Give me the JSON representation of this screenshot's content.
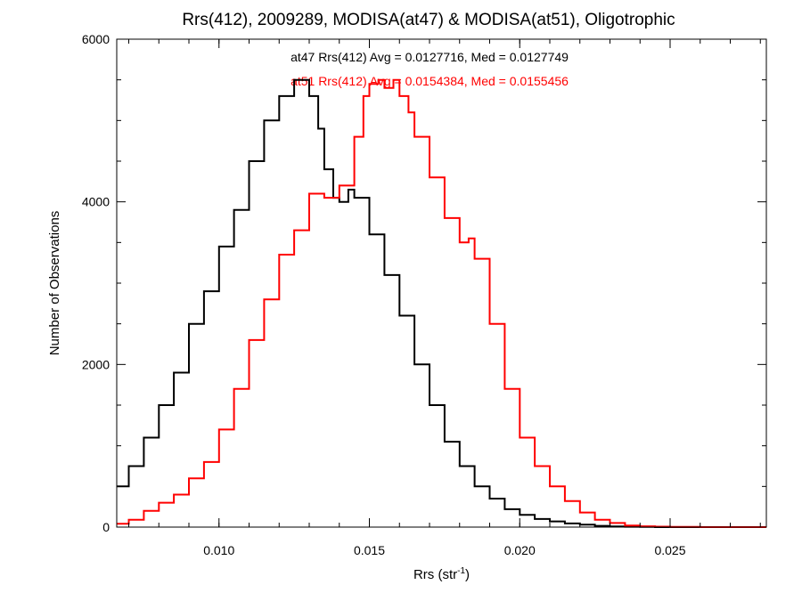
{
  "chart_data": {
    "type": "histogram",
    "title": "Rrs(412), 2009289, MODISA(at47) & MODISA(at51), Oligotrophic",
    "xlabel": "Rrs (str",
    "xlabel_sup": "-1",
    "xlabel_close": ")",
    "ylabel": "Number of Observations",
    "xlim": [
      0.0066,
      0.0282
    ],
    "ylim": [
      0,
      6000
    ],
    "x_ticks": [
      0.01,
      0.015,
      0.02,
      0.025
    ],
    "x_tick_labels": [
      "0.010",
      "0.015",
      "0.020",
      "0.025"
    ],
    "y_ticks": [
      0,
      2000,
      4000,
      6000
    ],
    "y_tick_labels": [
      "0",
      "2000",
      "4000",
      "6000"
    ],
    "grid": false,
    "annotations": [
      {
        "text": "at47 Rrs(412) Avg = 0.0127716, Med = 0.0127749",
        "color": "#000000"
      },
      {
        "text": "at51 Rrs(412) Avg = 0.0154384, Med = 0.0155456",
        "color": "#ff0000"
      }
    ],
    "series": [
      {
        "color": "#000000",
        "x": [
          0.0066,
          0.007,
          0.0075,
          0.008,
          0.0085,
          0.009,
          0.0095,
          0.01,
          0.0105,
          0.011,
          0.0115,
          0.012,
          0.0125,
          0.0128,
          0.013,
          0.0133,
          0.0135,
          0.0138,
          0.014,
          0.0143,
          0.0145,
          0.015,
          0.0155,
          0.016,
          0.0165,
          0.017,
          0.0175,
          0.018,
          0.0185,
          0.019,
          0.0195,
          0.02,
          0.0205,
          0.021,
          0.0215,
          0.022,
          0.0225,
          0.023,
          0.0235,
          0.024,
          0.0245,
          0.025,
          0.026,
          0.027,
          0.0282
        ],
        "values": [
          500,
          750,
          1100,
          1500,
          1900,
          2500,
          2900,
          3450,
          3900,
          4500,
          5000,
          5300,
          5500,
          5500,
          5300,
          4900,
          4400,
          4050,
          4000,
          4150,
          4050,
          3600,
          3100,
          2600,
          2000,
          1500,
          1050,
          750,
          500,
          350,
          220,
          150,
          100,
          70,
          45,
          30,
          15,
          8,
          4,
          2,
          0,
          0,
          0,
          0,
          0
        ]
      },
      {
        "color": "#ff0000",
        "x": [
          0.0066,
          0.007,
          0.0075,
          0.008,
          0.0085,
          0.009,
          0.0095,
          0.01,
          0.0105,
          0.011,
          0.0115,
          0.012,
          0.0125,
          0.013,
          0.0135,
          0.014,
          0.0145,
          0.0148,
          0.015,
          0.0153,
          0.0155,
          0.0158,
          0.016,
          0.0163,
          0.0165,
          0.017,
          0.0175,
          0.018,
          0.0183,
          0.0185,
          0.019,
          0.0195,
          0.02,
          0.0205,
          0.021,
          0.0215,
          0.022,
          0.0225,
          0.023,
          0.0235,
          0.024,
          0.0245,
          0.025,
          0.026,
          0.027,
          0.0282
        ],
        "values": [
          40,
          90,
          200,
          300,
          400,
          600,
          800,
          1200,
          1700,
          2300,
          2800,
          3350,
          3650,
          4100,
          4050,
          4200,
          4800,
          5300,
          5450,
          5500,
          5400,
          5500,
          5300,
          5100,
          4800,
          4300,
          3800,
          3500,
          3550,
          3300,
          2500,
          1700,
          1100,
          750,
          500,
          320,
          180,
          90,
          50,
          20,
          10,
          5,
          2,
          0,
          0,
          0
        ]
      }
    ]
  }
}
